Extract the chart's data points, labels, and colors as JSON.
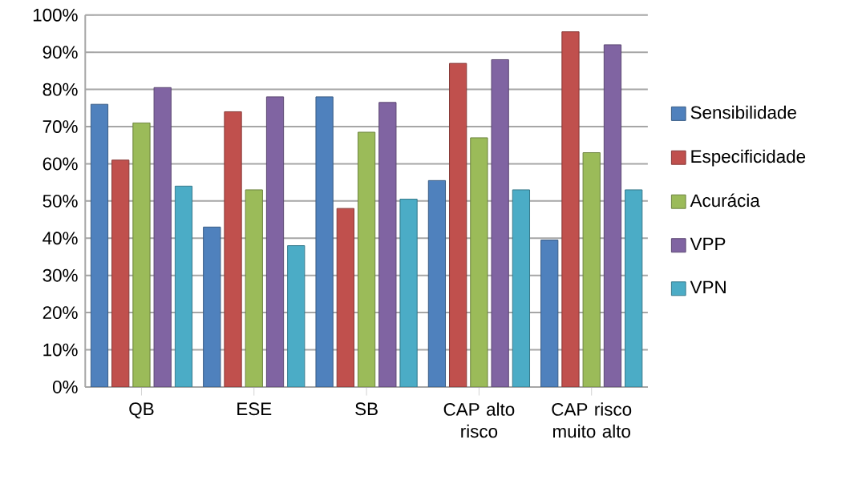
{
  "chart_data": {
    "type": "bar",
    "categories": [
      "QB",
      "ESE",
      "SB",
      "CAP alto risco",
      "CAP risco muito alto"
    ],
    "series": [
      {
        "name": "Sensibilidade",
        "color": "#4f81bd",
        "values": [
          76,
          43,
          78,
          55.5,
          39.5
        ]
      },
      {
        "name": "Especificidade",
        "color": "#c0504d",
        "values": [
          61,
          74,
          48,
          87,
          95.5
        ]
      },
      {
        "name": "Acurácia",
        "color": "#9bbb59",
        "values": [
          71,
          53,
          68.5,
          67,
          63
        ]
      },
      {
        "name": "VPP",
        "color": "#8064a2",
        "values": [
          80.5,
          78,
          76.5,
          88,
          92
        ]
      },
      {
        "name": "VPN",
        "color": "#4bacc6",
        "values": [
          54,
          38,
          50.5,
          53,
          53
        ]
      }
    ],
    "ylim": [
      0,
      100
    ],
    "yticks": [
      {
        "value": 0,
        "label": "0%"
      },
      {
        "value": 10,
        "label": "10%"
      },
      {
        "value": 20,
        "label": "20%"
      },
      {
        "value": 30,
        "label": "30%"
      },
      {
        "value": 40,
        "label": "40%"
      },
      {
        "value": 50,
        "label": "50%"
      },
      {
        "value": 60,
        "label": "60%"
      },
      {
        "value": 70,
        "label": "70%"
      },
      {
        "value": 80,
        "label": "80%"
      },
      {
        "value": 90,
        "label": "90%"
      },
      {
        "value": 100,
        "label": "100%"
      }
    ],
    "grid": "y",
    "legend": "right"
  }
}
